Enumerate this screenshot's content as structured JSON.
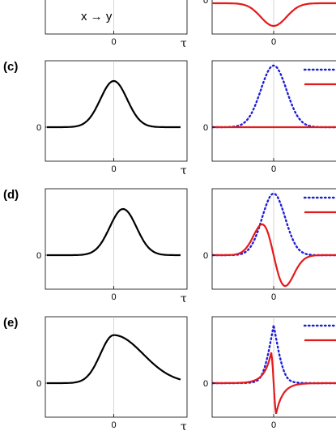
{
  "chart_data": [
    {
      "type": "line",
      "panel": "top-left",
      "annotation": "x → y",
      "x_tick": "0",
      "x_axis_symbol": "τ",
      "series": [
        {
          "color": "#000000",
          "style": "solid",
          "shape": "flat",
          "center": 0,
          "amp": 0,
          "sigma": 1
        }
      ]
    },
    {
      "type": "line",
      "panel": "top-right",
      "y_tick": "0",
      "x_tick": "0",
      "series": [
        {
          "color": "#e31a1c",
          "style": "solid",
          "shape": "dip",
          "center": 0,
          "amp": 1,
          "sigma": 0.5
        }
      ]
    },
    {
      "type": "line",
      "panel": "c-left",
      "label": "(c)",
      "y_tick": "0",
      "x_tick": "0",
      "x_axis_symbol": "τ",
      "series": [
        {
          "color": "#000000",
          "style": "solid",
          "shape": "gauss",
          "center": 0,
          "amp": 0.75,
          "sigma": 0.5
        }
      ]
    },
    {
      "type": "line",
      "panel": "c-right",
      "y_tick": "0",
      "x_tick": "0",
      "legend": "top-right",
      "series": [
        {
          "color": "#1f1fd6",
          "style": "dotted",
          "shape": "gauss",
          "center": 0,
          "amp": 1.0,
          "sigma": 0.5
        },
        {
          "color": "#e31a1c",
          "style": "solid",
          "shape": "zero",
          "center": 0,
          "amp": 0,
          "sigma": 0.5
        }
      ]
    },
    {
      "type": "line",
      "panel": "d-left",
      "label": "(d)",
      "y_tick": "0",
      "x_tick": "0",
      "x_axis_symbol": "τ",
      "series": [
        {
          "color": "#000000",
          "style": "solid",
          "shape": "gauss",
          "center": 0.35,
          "amp": 0.75,
          "sigma": 0.5
        }
      ]
    },
    {
      "type": "line",
      "panel": "d-right",
      "y_tick": "0",
      "x_tick": "0",
      "legend": "top-right",
      "series": [
        {
          "color": "#1f1fd6",
          "style": "dotted",
          "shape": "gauss",
          "center": 0,
          "amp": 1.0,
          "sigma": 0.45
        },
        {
          "color": "#e31a1c",
          "style": "solid",
          "shape": "deriv",
          "center": 0,
          "amp": 0.5,
          "sigma": 0.45
        }
      ]
    },
    {
      "type": "line",
      "panel": "e-left",
      "label": "(e)",
      "y_tick": "0",
      "x_tick": "0",
      "x_axis_symbol": "τ",
      "series": [
        {
          "color": "#000000",
          "style": "solid",
          "shape": "skew",
          "center": 0,
          "amp": 0.78,
          "sigma": 0.5
        }
      ]
    },
    {
      "type": "line",
      "panel": "e-right",
      "y_tick": "0",
      "x_tick": "0",
      "legend": "top-right",
      "series": [
        {
          "color": "#1f1fd6",
          "style": "dotted",
          "shape": "cusp",
          "center": 0,
          "amp": 0.9,
          "sigma": 0.35
        },
        {
          "color": "#e31a1c",
          "style": "solid",
          "shape": "cuspderiv",
          "center": 0,
          "amp": 0.32,
          "sigma": 0.35
        }
      ]
    }
  ]
}
